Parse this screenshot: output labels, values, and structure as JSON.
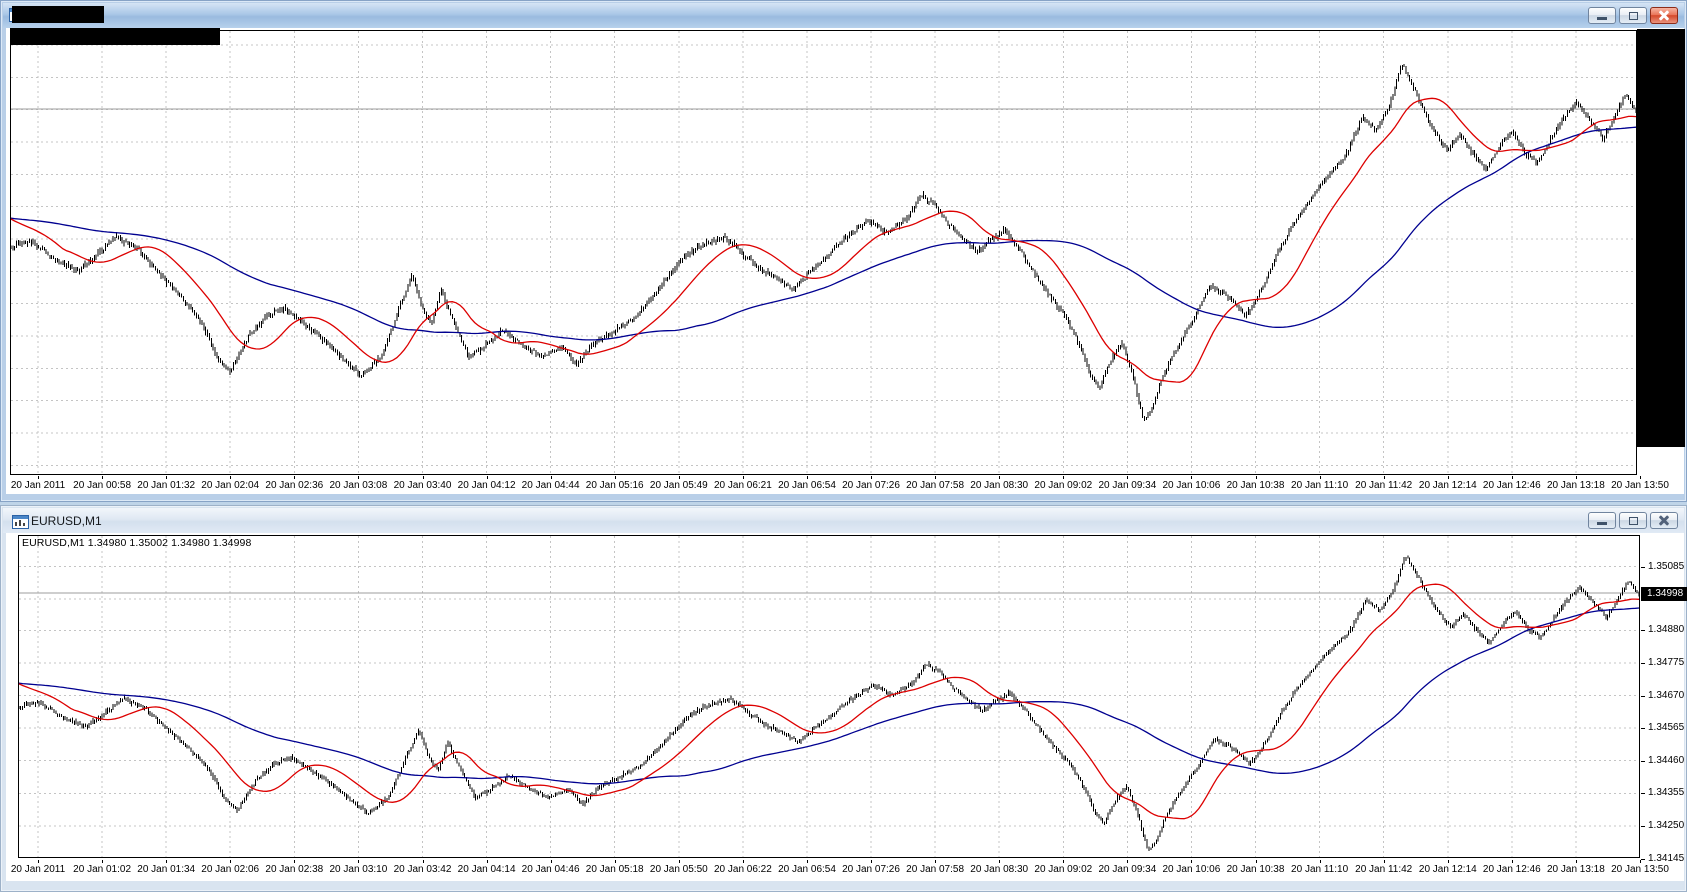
{
  "app": {
    "theme_bg": "#bfd4e8",
    "grid_color": "#c4c4c4",
    "level_line_color": "#9c9c9c"
  },
  "windows": {
    "top": {
      "state": "active",
      "title_redacted": true,
      "chart_label_redacted": true,
      "price_axis_redacted": true,
      "buttons": {
        "minimize": "minimize",
        "restore": "restore",
        "close": "close"
      },
      "axis_times": [
        "20 Jan 2011",
        "20 Jan 00:58",
        "20 Jan 01:32",
        "20 Jan 02:04",
        "20 Jan 02:36",
        "20 Jan 03:08",
        "20 Jan 03:40",
        "20 Jan 04:12",
        "20 Jan 04:44",
        "20 Jan 05:16",
        "20 Jan 05:49",
        "20 Jan 06:21",
        "20 Jan 06:54",
        "20 Jan 07:26",
        "20 Jan 07:58",
        "20 Jan 08:30",
        "20 Jan 09:02",
        "20 Jan 09:34",
        "20 Jan 10:06",
        "20 Jan 10:38",
        "20 Jan 11:10",
        "20 Jan 11:42",
        "20 Jan 12:14",
        "20 Jan 12:46",
        "20 Jan 13:18",
        "20 Jan 13:50"
      ]
    },
    "bottom": {
      "state": "inactive",
      "title": "EURUSD,M1",
      "info_line": "EURUSD,M1  1.34980 1.35002 1.34980 1.34998",
      "current_price": "1.34998",
      "buttons": {
        "minimize": "minimize",
        "restore": "restore",
        "close": "close"
      },
      "price_labels": [
        "1.35085",
        "1.34980",
        "1.34880",
        "1.34775",
        "1.34670",
        "1.34565",
        "1.34460",
        "1.34355",
        "1.34250",
        "1.34145"
      ],
      "axis_times": [
        "20 Jan 2011",
        "20 Jan 01:02",
        "20 Jan 01:34",
        "20 Jan 02:06",
        "20 Jan 02:38",
        "20 Jan 03:10",
        "20 Jan 03:42",
        "20 Jan 04:14",
        "20 Jan 04:46",
        "20 Jan 05:18",
        "20 Jan 05:50",
        "20 Jan 06:22",
        "20 Jan 06:54",
        "20 Jan 07:26",
        "20 Jan 07:58",
        "20 Jan 08:30",
        "20 Jan 09:02",
        "20 Jan 09:34",
        "20 Jan 10:06",
        "20 Jan 10:38",
        "20 Jan 11:10",
        "20 Jan 11:42",
        "20 Jan 12:14",
        "20 Jan 12:46",
        "20 Jan 13:18",
        "20 Jan 13:50"
      ]
    }
  },
  "chart_data": {
    "type": "ohlc-bars",
    "symbol": "EURUSD",
    "timeframe": "M1",
    "date": "20 Jan 2011",
    "last_bar": {
      "open": 1.3498,
      "high": 1.35002,
      "low": 1.3498,
      "close": 1.34998
    },
    "level_line": 1.35,
    "y_ticks": [
      1.35085,
      1.3498,
      1.3488,
      1.34775,
      1.3467,
      1.34565,
      1.3446,
      1.34355,
      1.3425,
      1.34145
    ],
    "bar_color": "#000000",
    "ma_fast": {
      "period": 30,
      "color": "#dd0000"
    },
    "ma_slow": {
      "period": 140,
      "color": "#000090"
    },
    "ma_seed": 1.3471,
    "bars_rendered": 877,
    "session_high": 1.3513,
    "session_low": 1.3415,
    "anchors": [
      [
        0.0,
        1.3463
      ],
      [
        0.012,
        1.3465
      ],
      [
        0.028,
        1.346
      ],
      [
        0.042,
        1.3457
      ],
      [
        0.055,
        1.3462
      ],
      [
        0.065,
        1.3466
      ],
      [
        0.078,
        1.3463
      ],
      [
        0.092,
        1.3456
      ],
      [
        0.105,
        1.345
      ],
      [
        0.118,
        1.3443
      ],
      [
        0.128,
        1.3433
      ],
      [
        0.135,
        1.343
      ],
      [
        0.147,
        1.344
      ],
      [
        0.158,
        1.3445
      ],
      [
        0.168,
        1.3447
      ],
      [
        0.18,
        1.3443
      ],
      [
        0.194,
        1.3438
      ],
      [
        0.208,
        1.3432
      ],
      [
        0.216,
        1.3429
      ],
      [
        0.228,
        1.3434
      ],
      [
        0.24,
        1.3448
      ],
      [
        0.247,
        1.3456
      ],
      [
        0.253,
        1.3447
      ],
      [
        0.259,
        1.3443
      ],
      [
        0.265,
        1.3452
      ],
      [
        0.272,
        1.3444
      ],
      [
        0.282,
        1.3434
      ],
      [
        0.292,
        1.3437
      ],
      [
        0.303,
        1.3441
      ],
      [
        0.315,
        1.3437
      ],
      [
        0.328,
        1.3434
      ],
      [
        0.34,
        1.3437
      ],
      [
        0.348,
        1.3432
      ],
      [
        0.36,
        1.3438
      ],
      [
        0.372,
        1.3441
      ],
      [
        0.383,
        1.3444
      ],
      [
        0.393,
        1.3449
      ],
      [
        0.404,
        1.3455
      ],
      [
        0.415,
        1.3461
      ],
      [
        0.427,
        1.3464
      ],
      [
        0.44,
        1.3466
      ],
      [
        0.452,
        1.3461
      ],
      [
        0.463,
        1.3457
      ],
      [
        0.475,
        1.3454
      ],
      [
        0.482,
        1.3452
      ],
      [
        0.493,
        1.3457
      ],
      [
        0.505,
        1.3462
      ],
      [
        0.517,
        1.3467
      ],
      [
        0.528,
        1.347
      ],
      [
        0.54,
        1.3467
      ],
      [
        0.552,
        1.3471
      ],
      [
        0.56,
        1.3477
      ],
      [
        0.568,
        1.3475
      ],
      [
        0.576,
        1.347
      ],
      [
        0.585,
        1.3466
      ],
      [
        0.595,
        1.3462
      ],
      [
        0.603,
        1.3465
      ],
      [
        0.612,
        1.3468
      ],
      [
        0.622,
        1.3462
      ],
      [
        0.632,
        1.3455
      ],
      [
        0.64,
        1.345
      ],
      [
        0.65,
        1.3444
      ],
      [
        0.658,
        1.3437
      ],
      [
        0.664,
        1.343
      ],
      [
        0.67,
        1.3426
      ],
      [
        0.678,
        1.3434
      ],
      [
        0.684,
        1.3438
      ],
      [
        0.69,
        1.343
      ],
      [
        0.697,
        1.3417
      ],
      [
        0.702,
        1.342
      ],
      [
        0.708,
        1.3428
      ],
      [
        0.715,
        1.3434
      ],
      [
        0.722,
        1.344
      ],
      [
        0.729,
        1.3445
      ],
      [
        0.738,
        1.3453
      ],
      [
        0.746,
        1.3451
      ],
      [
        0.754,
        1.3448
      ],
      [
        0.76,
        1.3445
      ],
      [
        0.77,
        1.3452
      ],
      [
        0.78,
        1.3462
      ],
      [
        0.79,
        1.347
      ],
      [
        0.8,
        1.3476
      ],
      [
        0.812,
        1.3483
      ],
      [
        0.822,
        1.3488
      ],
      [
        0.832,
        1.3498
      ],
      [
        0.84,
        1.3494
      ],
      [
        0.848,
        1.35
      ],
      [
        0.856,
        1.3512
      ],
      [
        0.862,
        1.3507
      ],
      [
        0.868,
        1.3501
      ],
      [
        0.876,
        1.3494
      ],
      [
        0.884,
        1.3489
      ],
      [
        0.892,
        1.3493
      ],
      [
        0.9,
        1.3488
      ],
      [
        0.908,
        1.3484
      ],
      [
        0.916,
        1.349
      ],
      [
        0.924,
        1.3494
      ],
      [
        0.932,
        1.3488
      ],
      [
        0.94,
        1.3486
      ],
      [
        0.948,
        1.3492
      ],
      [
        0.956,
        1.3498
      ],
      [
        0.964,
        1.3502
      ],
      [
        0.972,
        1.3497
      ],
      [
        0.98,
        1.3492
      ],
      [
        0.988,
        1.3499
      ],
      [
        0.994,
        1.3504
      ],
      [
        1.0,
        1.34998
      ]
    ]
  }
}
